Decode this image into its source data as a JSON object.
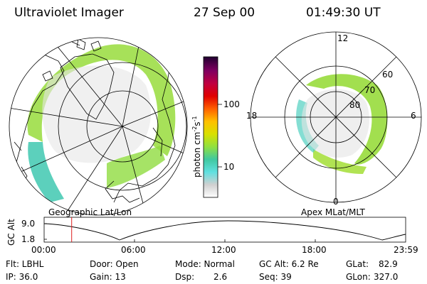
{
  "header": {
    "title": "Ultraviolet Imager",
    "date": "27 Sep 00",
    "time": "01:49:30 UT"
  },
  "geo_map": {
    "caption": "Geographic Lat/Lon"
  },
  "colorbar": {
    "label": "photon cm",
    "label_sup1": "-2",
    "label_mid": "s",
    "label_sup2": "-1",
    "ticks": [
      "100",
      "10"
    ],
    "colors": [
      "#ffffff",
      "#d0d0d0",
      "#60e0e0",
      "#40c8a0",
      "#90e040",
      "#d8e000",
      "#ffc000",
      "#ff6000",
      "#e00000",
      "#c00040",
      "#800060",
      "#200030"
    ]
  },
  "polar_plot": {
    "caption": "Apex MLat/MLT",
    "mlt_labels": [
      "12",
      "18",
      "6",
      "0"
    ],
    "mlat_labels": [
      "60",
      "70",
      "80"
    ]
  },
  "time_plot": {
    "ylabel": "GC Alt",
    "yticks": [
      "9.0",
      "1.8"
    ],
    "xticks": [
      "00:00",
      "06:00",
      "12:00",
      "18:00",
      "23:59"
    ],
    "marker_time": "01:49:30"
  },
  "info": {
    "flt": "Flt: LBHL",
    "ip": "IP: 36.0",
    "door": "Door: Open",
    "gain": "Gain: 13",
    "mode": "Mode: Normal",
    "dsp_label": "Dsp:",
    "dsp_value": "2.6",
    "gcalt": "GC Alt: 6.2 Re",
    "seq": "Seq: 39",
    "glat_label": "GLat:",
    "glat_value": "82.9",
    "glon_label": "GLon:",
    "glon_value": "327.0"
  }
}
